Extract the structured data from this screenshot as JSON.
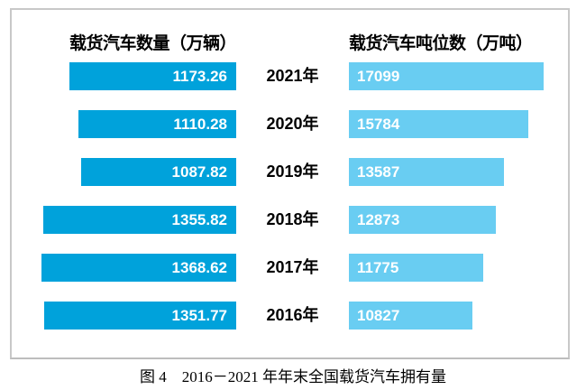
{
  "chart_data": {
    "type": "bar",
    "orientation": "horizontal-paired",
    "title": "图 4　2016－2021 年年末全国载货汽车拥有量",
    "categories": [
      "2021年",
      "2020年",
      "2019年",
      "2018年",
      "2017年",
      "2016年"
    ],
    "series": [
      {
        "name": "载货汽车数量（万辆）",
        "values": [
          1173.26,
          1110.28,
          1087.82,
          1355.82,
          1368.62,
          1351.77
        ],
        "labels": [
          "1173.26",
          "1110.28",
          "1087.82",
          "1355.82",
          "1368.62",
          "1351.77"
        ],
        "axis_max": 1368.62,
        "color": "#00A2DB",
        "align": "right"
      },
      {
        "name": "载货汽车吨位数（万吨）",
        "values": [
          17099,
          15784,
          13587,
          12873,
          11775,
          10827
        ],
        "labels": [
          "17099",
          "15784",
          "13587",
          "12873",
          "11775",
          "10827"
        ],
        "axis_max": 17099,
        "color": "#69CDF2",
        "align": "left"
      }
    ],
    "legend_position": "top",
    "grid": false,
    "value_labels": "inside-bar"
  },
  "colors": {
    "left_bar": "#00A2DB",
    "right_bar": "#69CDF2",
    "bar_label_text": "#ffffff",
    "panel_border": "#c8c8c8",
    "text": "#000000",
    "background": "#ffffff"
  }
}
